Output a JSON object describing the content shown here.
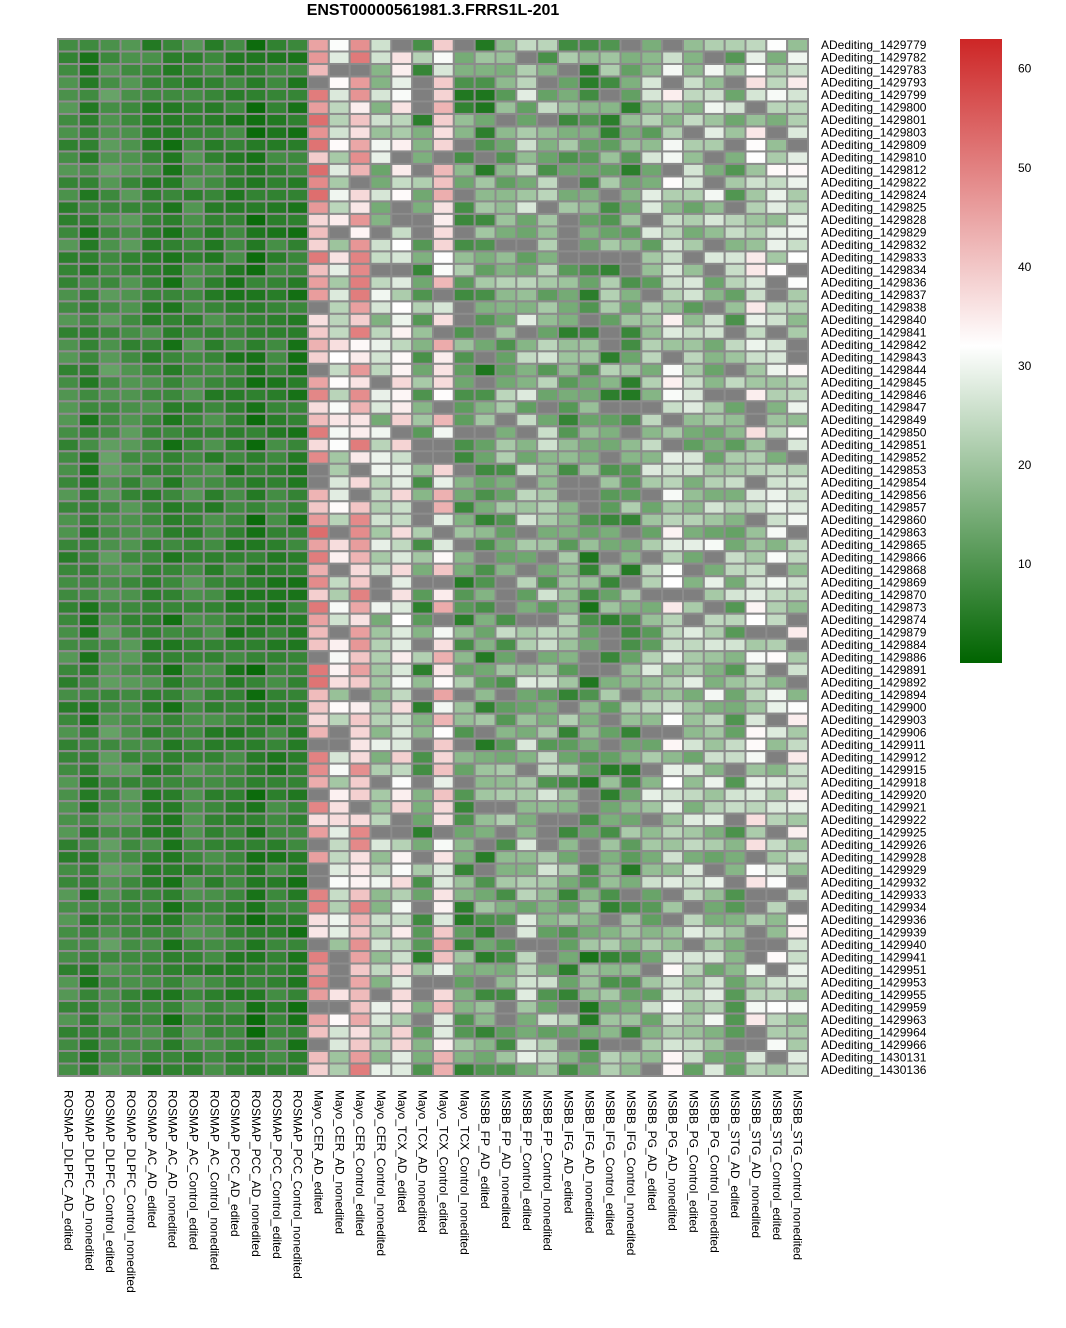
{
  "chart_data": {
    "type": "heatmap",
    "title": "ENST00000561981.3.FRRS1L-201",
    "rows": [
      "ADediting_1429779",
      "ADediting_1429782",
      "ADediting_1429783",
      "ADediting_1429793",
      "ADediting_1429799",
      "ADediting_1429800",
      "ADediting_1429801",
      "ADediting_1429803",
      "ADediting_1429809",
      "ADediting_1429810",
      "ADediting_1429812",
      "ADediting_1429822",
      "ADediting_1429824",
      "ADediting_1429825",
      "ADediting_1429828",
      "ADediting_1429829",
      "ADediting_1429832",
      "ADediting_1429833",
      "ADediting_1429834",
      "ADediting_1429836",
      "ADediting_1429837",
      "ADediting_1429838",
      "ADediting_1429840",
      "ADediting_1429841",
      "ADediting_1429842",
      "ADediting_1429843",
      "ADediting_1429844",
      "ADediting_1429845",
      "ADediting_1429846",
      "ADediting_1429847",
      "ADediting_1429849",
      "ADediting_1429850",
      "ADediting_1429851",
      "ADediting_1429852",
      "ADediting_1429853",
      "ADediting_1429854",
      "ADediting_1429856",
      "ADediting_1429857",
      "ADediting_1429860",
      "ADediting_1429863",
      "ADediting_1429865",
      "ADediting_1429866",
      "ADediting_1429868",
      "ADediting_1429869",
      "ADediting_1429870",
      "ADediting_1429873",
      "ADediting_1429874",
      "ADediting_1429879",
      "ADediting_1429884",
      "ADediting_1429886",
      "ADediting_1429891",
      "ADediting_1429892",
      "ADediting_1429894",
      "ADediting_1429900",
      "ADediting_1429903",
      "ADediting_1429906",
      "ADediting_1429911",
      "ADediting_1429912",
      "ADediting_1429915",
      "ADediting_1429918",
      "ADediting_1429920",
      "ADediting_1429921",
      "ADediting_1429922",
      "ADediting_1429925",
      "ADediting_1429926",
      "ADediting_1429928",
      "ADediting_1429929",
      "ADediting_1429932",
      "ADediting_1429933",
      "ADediting_1429934",
      "ADediting_1429936",
      "ADediting_1429939",
      "ADediting_1429940",
      "ADediting_1429941",
      "ADediting_1429951",
      "ADediting_1429953",
      "ADediting_1429955",
      "ADediting_1429959",
      "ADediting_1429963",
      "ADediting_1429964",
      "ADediting_1429966",
      "ADediting_1430131",
      "ADediting_1430136"
    ],
    "columns": [
      "ROSMAP_DLPFC_AD_edited",
      "ROSMAP_DLPFC_AD_nonedited",
      "ROSMAP_DLPFC_Control_edited",
      "ROSMAP_DLPFC_Control_nonedited",
      "ROSMAP_AC_AD_edited",
      "ROSMAP_AC_AD_nonedited",
      "ROSMAP_AC_Control_edited",
      "ROSMAP_AC_Control_nonedited",
      "ROSMAP_PCC_AD_edited",
      "ROSMAP_PCC_AD_nonedited",
      "ROSMAP_PCC_Control_edited",
      "ROSMAP_PCC_Control_nonedited",
      "Mayo_CER_AD_edited",
      "Mayo_CER_AD_nonedited",
      "Mayo_CER_Control_edited",
      "Mayo_CER_Control_nonedited",
      "Mayo_TCX_AD_edited",
      "Mayo_TCX_AD_nonedited",
      "Mayo_TCX_Control_edited",
      "Mayo_TCX_Control_nonedited",
      "MSBB_FP_AD_edited",
      "MSBB_FP_AD_nonedited",
      "MSBB_FP_Control_edited",
      "MSBB_FP_Control_nonedited",
      "MSBB_IFG_AD_edited",
      "MSBB_IFG_AD_nonedited",
      "MSBB_IFG_Control_edited",
      "MSBB_IFG_Control_nonedited",
      "MSBB_PG_AD_edited",
      "MSBB_PG_AD_nonedited",
      "MSBB_PG_Control_edited",
      "MSBB_PG_Control_nonedited",
      "MSBB_STG_AD_edited",
      "MSBB_STG_AD_nonedited",
      "MSBB_STG_Control_edited",
      "MSBB_STG_Control_nonedited"
    ],
    "column_base_values": [
      8,
      6,
      10,
      9,
      7,
      5,
      8,
      7,
      6,
      4,
      6,
      5,
      44,
      28,
      42,
      22,
      30,
      14,
      36,
      13,
      12,
      16,
      20,
      18,
      14,
      12,
      14,
      13,
      20,
      26,
      20,
      22,
      18,
      28,
      24,
      26
    ],
    "missing_color": "#7f7f7f",
    "color_scale": {
      "min": 0,
      "max": 63,
      "stops": [
        {
          "value": 0,
          "color": "#006400"
        },
        {
          "value": 32,
          "color": "#ffffff"
        },
        {
          "value": 63,
          "color": "#cd2626"
        }
      ]
    },
    "legend_ticks": [
      10,
      20,
      30,
      40,
      50,
      60
    ],
    "legend_position": "right"
  }
}
